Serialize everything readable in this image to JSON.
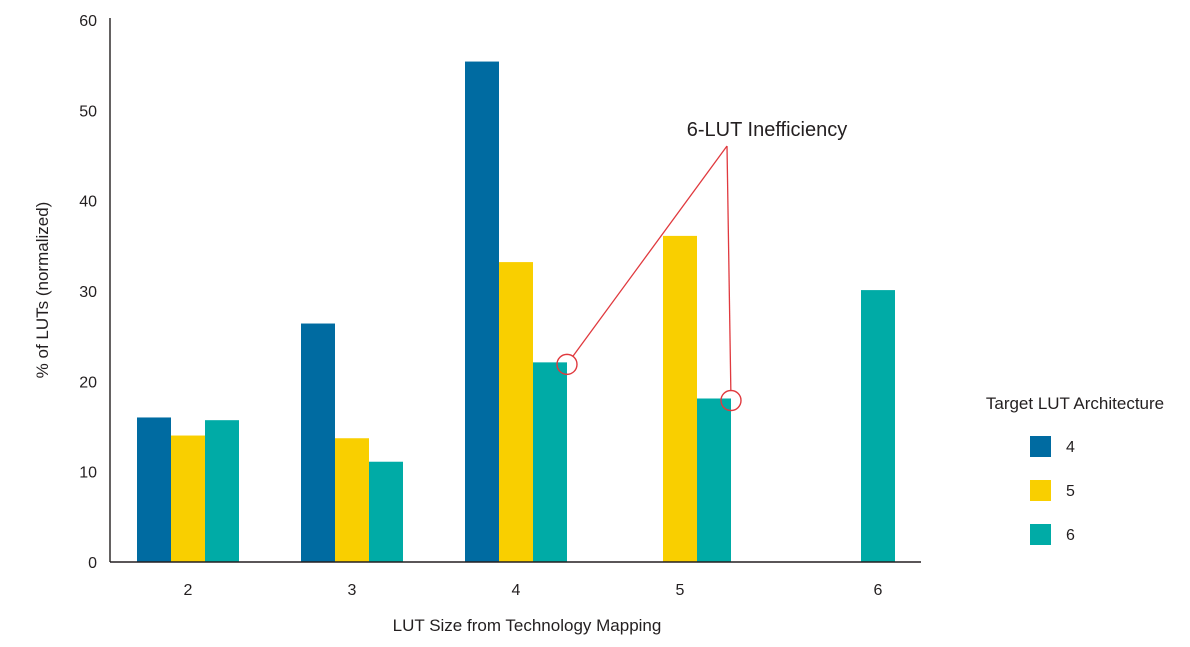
{
  "chart_data": {
    "type": "bar",
    "title": "",
    "xlabel": "LUT Size from Technology Mapping",
    "ylabel": "% of LUTs (normalized)",
    "ylim": [
      0,
      60
    ],
    "yticks": [
      "0",
      "10",
      "20",
      "30",
      "40",
      "50",
      "60"
    ],
    "categories": [
      "2",
      "3",
      "4",
      "5",
      "6"
    ],
    "series": [
      {
        "name": "4",
        "color": "#006ba1",
        "values": [
          16.0,
          26.4,
          55.4,
          null,
          null
        ]
      },
      {
        "name": "5",
        "color": "#f9cf00",
        "values": [
          14.0,
          13.7,
          33.2,
          36.1,
          null
        ]
      },
      {
        "name": "6",
        "color": "#00aba6",
        "values": [
          15.7,
          11.1,
          22.1,
          18.1,
          30.1
        ]
      }
    ],
    "legend": {
      "title": "Target LUT Architecture",
      "placement": "right"
    },
    "grid": false,
    "annotations": [
      {
        "text": "6-LUT Inefficiency",
        "line_color": "#e0393e",
        "targets": [
          {
            "category": "4",
            "series": "6"
          },
          {
            "category": "5",
            "series": "6"
          }
        ]
      }
    ]
  }
}
